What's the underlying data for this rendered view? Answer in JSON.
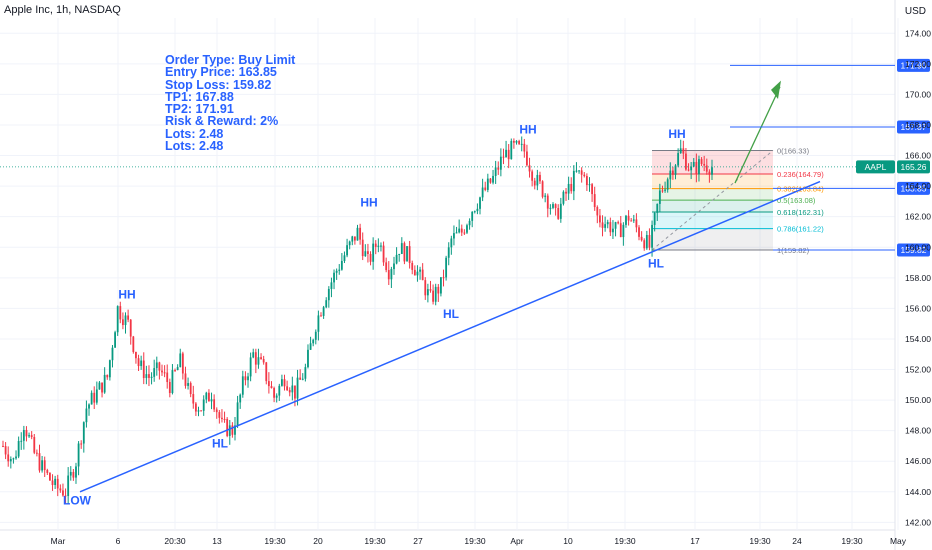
{
  "header": {
    "title": "Apple Inc, 1h, NASDAQ",
    "currency": "USD"
  },
  "info_box": {
    "lines": [
      "Order Type: Buy Limit",
      "Entry Price: 163.85",
      "Stop Loss: 159.82",
      "TP1: 167.88",
      "TP2: 171.91",
      "Risk & Reward: 2%",
      "Lots: 2.48",
      "Lots: 2.48"
    ]
  },
  "colors": {
    "up": "#089981",
    "down": "#f23645",
    "trend": "#2962ff",
    "arrow": "#43a047",
    "price_tag": "#2962ff",
    "aapl_tag": "#089981"
  },
  "chart_data": {
    "type": "candlestick",
    "symbol": "AAPL",
    "x_ticks": [
      "Mar",
      "6",
      "20:30",
      "13",
      "19:30",
      "20",
      "19:30",
      "27",
      "19:30",
      "Apr",
      "10",
      "19:30",
      "17",
      "19:30",
      "24",
      "19:30",
      "May"
    ],
    "y_ticks": [
      142.0,
      144.0,
      146.0,
      148.0,
      150.0,
      152.0,
      154.0,
      156.0,
      158.0,
      160.0,
      162.0,
      164.0,
      166.0,
      168.0,
      170.0,
      172.0,
      174.0
    ],
    "ylim": [
      141.5,
      175.0
    ],
    "grid": true,
    "current_price": {
      "label": "AAPL",
      "value": "165.26"
    },
    "levels": [
      {
        "label": "171.90",
        "value": 171.9
      },
      {
        "label": "167.87",
        "value": 167.87
      },
      {
        "label": "163.85",
        "value": 163.85
      },
      {
        "label": "159.82",
        "value": 159.82
      }
    ],
    "fibonacci": [
      {
        "label": "0(166.33)",
        "value": 166.33
      },
      {
        "label": "0.236(164.79)",
        "value": 164.79
      },
      {
        "label": "0.382(163.84)",
        "value": 163.84
      },
      {
        "label": "0.5(163.08)",
        "value": 163.08
      },
      {
        "label": "0.618(162.31)",
        "value": 162.31
      },
      {
        "label": "0.786(161.22)",
        "value": 161.22
      },
      {
        "label": "1(159.82)",
        "value": 159.82
      }
    ],
    "swing_labels": [
      {
        "text": "LOW",
        "value": 144.1
      },
      {
        "text": "HH",
        "value": 156.0
      },
      {
        "text": "HL",
        "value": 147.8
      },
      {
        "text": "HH",
        "value": 162.0
      },
      {
        "text": "HL",
        "value": 156.3
      },
      {
        "text": "HH",
        "value": 166.8
      },
      {
        "text": "HL",
        "value": 159.6
      },
      {
        "text": "HH",
        "value": 166.5
      }
    ],
    "trendline": {
      "from": 144.0,
      "to": 164.3
    },
    "path": [
      147.0,
      146.0,
      148.5,
      146.5,
      145.3,
      144.3,
      144.0,
      146.0,
      149.5,
      150.5,
      151.5,
      156.0,
      155.0,
      152.3,
      151.5,
      152.0,
      151.0,
      152.5,
      150.0,
      149.5,
      150.5,
      148.3,
      148.0,
      151.0,
      153.0,
      152.0,
      150.2,
      151.5,
      150.5,
      152.0,
      155.0,
      157.0,
      158.5,
      159.8,
      161.0,
      159.0,
      160.5,
      158.5,
      160.0,
      159.3,
      158.0,
      156.6,
      157.5,
      160.5,
      161.0,
      162.5,
      163.5,
      164.5,
      166.0,
      166.5,
      166.3,
      164.5,
      163.5,
      162.0,
      163.5,
      164.8,
      164.5,
      162.0,
      161.5,
      161.0,
      162.0,
      161.0,
      160.0,
      163.5,
      165.0,
      166.3,
      165.0,
      165.5,
      165.26
    ]
  }
}
